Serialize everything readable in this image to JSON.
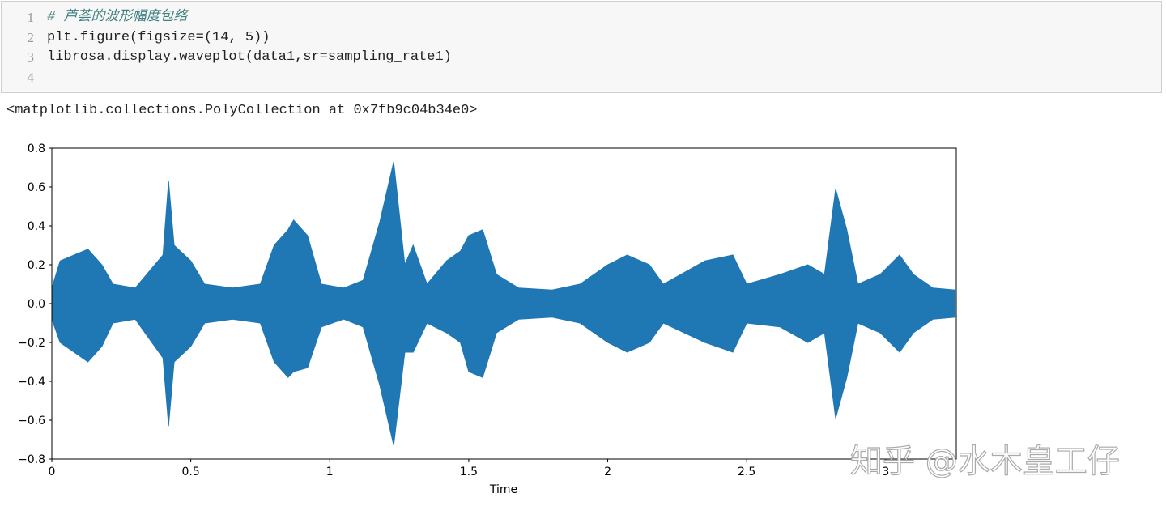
{
  "cell": {
    "line_numbers": [
      1,
      2,
      3,
      4
    ],
    "lines": [
      "# 芦荟的波形幅度包络",
      "plt.figure(figsize=(14, 5))",
      "librosa.display.waveplot(data1,sr=sampling_rate1)"
    ]
  },
  "output": "<matplotlib.collections.PolyCollection at 0x7fb9c04b34e0>",
  "watermark": "知乎 @水木皇工仔",
  "chart_data": {
    "type": "waveform",
    "xlabel": "Time",
    "color": "#1f77b4",
    "x": [
      0.0,
      0.03,
      0.08,
      0.13,
      0.18,
      0.22,
      0.3,
      0.4,
      0.42,
      0.44,
      0.5,
      0.55,
      0.65,
      0.75,
      0.8,
      0.85,
      0.87,
      0.92,
      0.97,
      1.05,
      1.12,
      1.18,
      1.23,
      1.27,
      1.3,
      1.35,
      1.42,
      1.47,
      1.5,
      1.55,
      1.6,
      1.68,
      1.8,
      1.9,
      2.0,
      2.07,
      2.15,
      2.2,
      2.35,
      2.45,
      2.5,
      2.62,
      2.72,
      2.78,
      2.82,
      2.86,
      2.9,
      2.98,
      3.05,
      3.1,
      3.17,
      3.25
    ],
    "y_max": [
      0.08,
      0.22,
      0.25,
      0.28,
      0.2,
      0.1,
      0.08,
      0.25,
      0.63,
      0.3,
      0.22,
      0.1,
      0.08,
      0.1,
      0.3,
      0.38,
      0.43,
      0.35,
      0.1,
      0.08,
      0.12,
      0.42,
      0.73,
      0.2,
      0.3,
      0.1,
      0.22,
      0.27,
      0.35,
      0.38,
      0.15,
      0.08,
      0.07,
      0.1,
      0.2,
      0.25,
      0.2,
      0.1,
      0.22,
      0.25,
      0.1,
      0.15,
      0.2,
      0.15,
      0.59,
      0.38,
      0.1,
      0.15,
      0.25,
      0.15,
      0.08,
      0.07
    ],
    "y_min": [
      -0.08,
      -0.2,
      -0.25,
      -0.3,
      -0.22,
      -0.1,
      -0.08,
      -0.28,
      -0.63,
      -0.3,
      -0.22,
      -0.1,
      -0.08,
      -0.1,
      -0.3,
      -0.38,
      -0.35,
      -0.33,
      -0.12,
      -0.08,
      -0.12,
      -0.42,
      -0.73,
      -0.25,
      -0.25,
      -0.1,
      -0.15,
      -0.2,
      -0.35,
      -0.38,
      -0.15,
      -0.08,
      -0.07,
      -0.1,
      -0.2,
      -0.25,
      -0.2,
      -0.1,
      -0.2,
      -0.25,
      -0.1,
      -0.12,
      -0.2,
      -0.15,
      -0.59,
      -0.38,
      -0.1,
      -0.15,
      -0.25,
      -0.15,
      -0.08,
      -0.07
    ],
    "xlim": [
      0,
      3.254
    ],
    "xticks": [
      0,
      0.5,
      1,
      1.5,
      2,
      2.5,
      3
    ],
    "ylim": [
      -0.8,
      0.8
    ],
    "yticks": [
      0.8,
      0.6,
      0.4,
      0.2,
      {
        "value": 0,
        "label": "0.0"
      },
      {
        "value": -0.2,
        "label": "−0.2"
      },
      {
        "value": -0.4,
        "label": "−0.4"
      },
      {
        "value": -0.6,
        "label": "−0.6"
      },
      {
        "value": -0.8,
        "label": "−0.8"
      }
    ]
  }
}
